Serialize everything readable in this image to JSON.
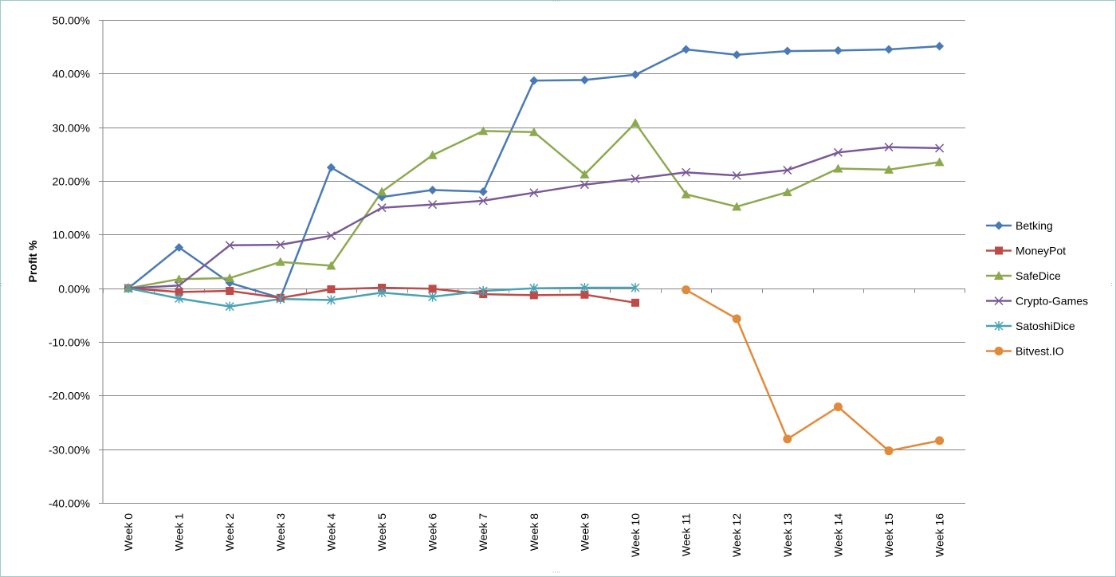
{
  "chart_data": {
    "type": "line",
    "title": "",
    "xlabel": "",
    "ylabel": "Profit %",
    "ylim": [
      -0.4,
      0.5
    ],
    "yticks": [
      0.5,
      0.4,
      0.3,
      0.2,
      0.1,
      0.0,
      -0.1,
      -0.2,
      -0.3,
      -0.4
    ],
    "ytick_labels": [
      "50.00%",
      "40.00%",
      "30.00%",
      "20.00%",
      "10.00%",
      "0.00%",
      "-10.00%",
      "-20.00%",
      "-30.00%",
      "-40.00%"
    ],
    "categories": [
      "Week 0",
      "Week 1",
      "Week 2",
      "Week 3",
      "Week 4",
      "Week 5",
      "Week 6",
      "Week 7",
      "Week 8",
      "Week 9",
      "Week 10",
      "Week 11",
      "Week 12",
      "Week 13",
      "Week 14",
      "Week 15",
      "Week 16"
    ],
    "grid": "horizontal",
    "legend_position": "right",
    "series": [
      {
        "name": "Betking",
        "color": "#4a7ab5",
        "marker": "diamond",
        "values": [
          0.0,
          0.076,
          0.01,
          -0.018,
          0.225,
          0.17,
          0.183,
          0.18,
          0.387,
          0.388,
          0.398,
          0.445,
          0.435,
          0.442,
          0.443,
          0.445,
          0.451
        ]
      },
      {
        "name": "MoneyPot",
        "color": "#be4b48",
        "marker": "square",
        "values": [
          0.0,
          -0.007,
          -0.005,
          -0.018,
          -0.002,
          0.001,
          -0.001,
          -0.011,
          -0.013,
          -0.012,
          -0.027,
          null,
          null,
          null,
          null,
          null,
          null
        ]
      },
      {
        "name": "SafeDice",
        "color": "#8ca94f",
        "marker": "triangle",
        "values": [
          0.0,
          0.017,
          0.019,
          0.049,
          0.042,
          0.18,
          0.248,
          0.293,
          0.291,
          0.212,
          0.308,
          0.175,
          0.152,
          0.179,
          0.223,
          0.221,
          0.235
        ]
      },
      {
        "name": "Crypto-Games",
        "color": "#7a5a96",
        "marker": "x",
        "values": [
          0.0,
          0.005,
          0.08,
          0.081,
          0.098,
          0.15,
          0.156,
          0.163,
          0.178,
          0.193,
          0.204,
          0.216,
          0.21,
          0.22,
          0.253,
          0.263,
          0.261
        ]
      },
      {
        "name": "SatoshiDice",
        "color": "#4aa2b4",
        "marker": "star",
        "values": [
          0.0,
          -0.019,
          -0.034,
          -0.02,
          -0.022,
          -0.008,
          -0.016,
          -0.005,
          0.0,
          0.001,
          0.001,
          null,
          null,
          null,
          null,
          null,
          null
        ]
      },
      {
        "name": "Bitvest.IO",
        "color": "#e08b3c",
        "marker": "circle",
        "values": [
          null,
          null,
          null,
          null,
          null,
          null,
          null,
          null,
          null,
          null,
          null,
          -0.003,
          -0.057,
          -0.281,
          -0.221,
          -0.303,
          -0.284
        ]
      }
    ]
  }
}
